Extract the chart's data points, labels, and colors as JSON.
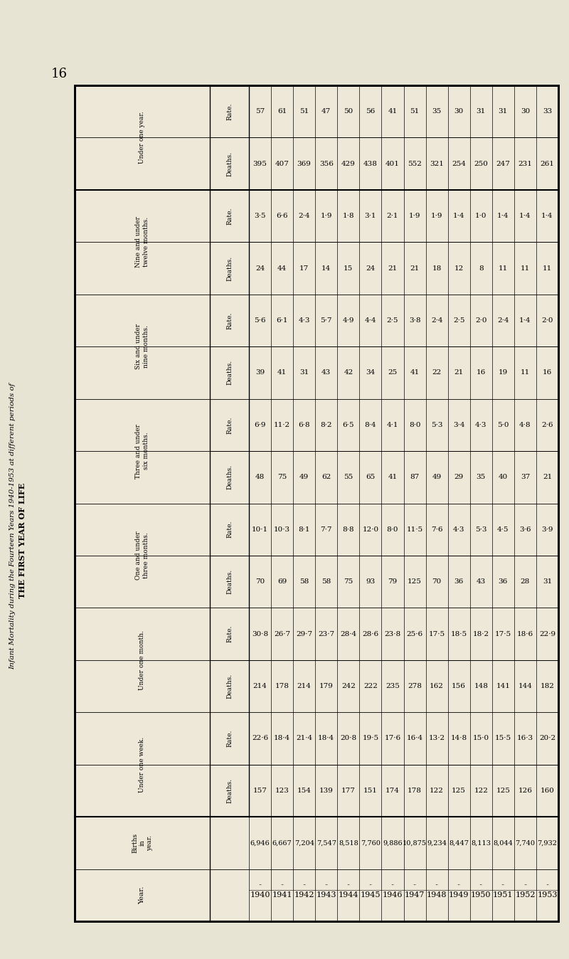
{
  "page_number": "16",
  "title_left": "Infant Mortality during the Fourteen Years 1940-1953 at different periods of",
  "title_right": "THE FIRST YEAR OF LIFE",
  "background_color": "#e8e4d4",
  "table_bg": "#ede8d8",
  "years": [
    "1940",
    "1941",
    "1942",
    "1943",
    "1944",
    "1945",
    "1946",
    "1947",
    "1948",
    "1949",
    "1950",
    "1951",
    "1952",
    "1953"
  ],
  "births": [
    "6,946",
    "6,667",
    "7,204",
    "7,547",
    "8,518",
    "7,760",
    "9,886",
    "10,875",
    "9,234",
    "8,447",
    "8,113",
    "8,044",
    "7,740",
    "7,932"
  ],
  "under_one_week_deaths": [
    "157",
    "123",
    "154",
    "139",
    "177",
    "151",
    "174",
    "178",
    "122",
    "125",
    "122",
    "125",
    "126",
    "160"
  ],
  "under_one_week_rate": [
    "22·6",
    "18·4",
    "21·4",
    "18·4",
    "20·8",
    "19·5",
    "17·6",
    "16·4",
    "13·2",
    "14·8",
    "15·0",
    "15·5",
    "16·3",
    "20·2"
  ],
  "under_one_month_deaths": [
    "214",
    "178",
    "214",
    "179",
    "242",
    "222",
    "235",
    "278",
    "162",
    "156",
    "148",
    "141",
    "144",
    "182"
  ],
  "under_one_month_rate": [
    "30·8",
    "26·7",
    "29·7",
    "23·7",
    "28·4",
    "28·6",
    "23·8",
    "25·6",
    "17·5",
    "18·5",
    "18·2",
    "17·5",
    "18·6",
    "22·9"
  ],
  "one_under_three_months_deaths": [
    "70",
    "69",
    "58",
    "58",
    "75",
    "93",
    "79",
    "125",
    "70",
    "36",
    "43",
    "36",
    "28",
    "31"
  ],
  "one_under_three_months_rate": [
    "10·1",
    "10·3",
    "8·1",
    "7·7",
    "8·8",
    "12·0",
    "8·0",
    "11·5",
    "7·6",
    "4·3",
    "5·3",
    "4·5",
    "3·6",
    "3·9"
  ],
  "three_under_six_months_deaths": [
    "48",
    "75",
    "49",
    "62",
    "55",
    "65",
    "41",
    "87",
    "49",
    "29",
    "35",
    "40",
    "37",
    "21"
  ],
  "three_under_six_months_rate": [
    "6·9",
    "11·2",
    "6·8",
    "8·2",
    "6·5",
    "8·4",
    "4·1",
    "8·0",
    "5·3",
    "3·4",
    "4·3",
    "5·0",
    "4·8",
    "2·6"
  ],
  "six_under_nine_months_deaths": [
    "39",
    "41",
    "31",
    "43",
    "42",
    "34",
    "25",
    "41",
    "22",
    "21",
    "16",
    "19",
    "11",
    "16"
  ],
  "six_under_nine_months_rate": [
    "5·6",
    "6·1",
    "4·3",
    "5·7",
    "4·9",
    "4·4",
    "2·5",
    "3·8",
    "2·4",
    "2·5",
    "2·0",
    "2·4",
    "1·4",
    "2·0"
  ],
  "nine_under_twelve_months_deaths": [
    "24",
    "44",
    "17",
    "14",
    "15",
    "24",
    "21",
    "21",
    "18",
    "12",
    "8",
    "11",
    "11",
    "11"
  ],
  "nine_under_twelve_months_rate": [
    "3·5",
    "6·6",
    "2·4",
    "1·9",
    "1·8",
    "3·1",
    "2·1",
    "1·9",
    "1·9",
    "1·4",
    "1·0",
    "1·4",
    "1·4",
    "1·4"
  ],
  "under_one_year_deaths": [
    "395",
    "407",
    "369",
    "356",
    "429",
    "438",
    "401",
    "552",
    "321",
    "254",
    "250",
    "247",
    "231",
    "261"
  ],
  "under_one_year_rate": [
    "57",
    "61",
    "51",
    "47",
    "50",
    "56",
    "41",
    "51",
    "35",
    "30",
    "31",
    "31",
    "30",
    "33"
  ]
}
